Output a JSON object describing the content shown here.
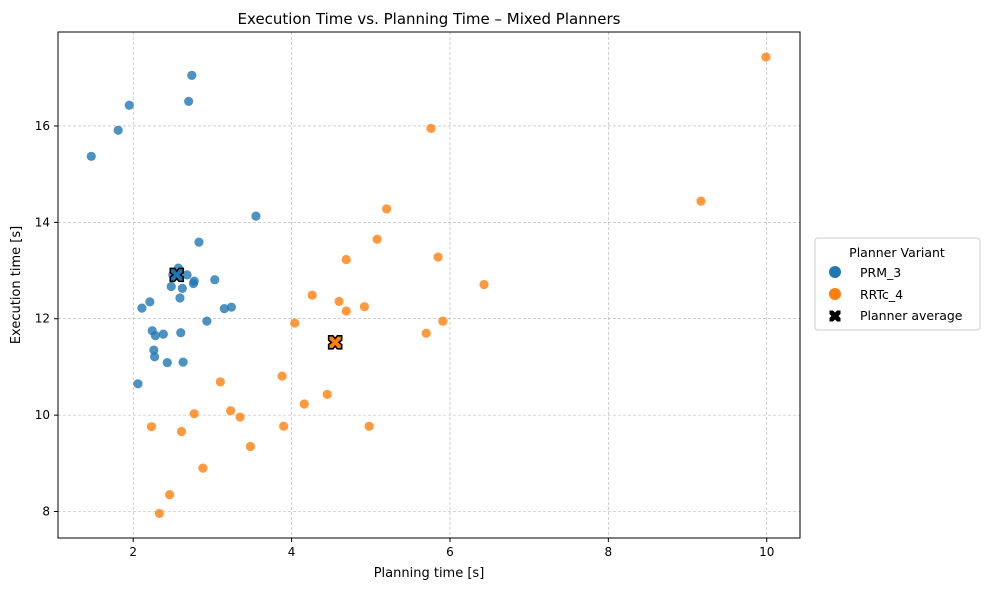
{
  "chart_data": {
    "type": "scatter",
    "title": "Execution Time vs. Planning Time – Mixed Planners",
    "xlabel": "Planning time [s]",
    "ylabel": "Execution time [s]",
    "xlim": [
      1.05,
      10.42
    ],
    "ylim": [
      7.45,
      17.95
    ],
    "xticks": [
      2,
      4,
      6,
      8,
      10
    ],
    "yticks": [
      8,
      10,
      12,
      14,
      16
    ],
    "grid": true,
    "legend": {
      "title": "Planner Variant",
      "placement": "center-right outside",
      "entries": [
        "PRM_3",
        "RRTc_4",
        "Planner average"
      ]
    },
    "series": [
      {
        "name": "PRM_3",
        "color": "#1f77b4",
        "points": [
          [
            1.47,
            15.37
          ],
          [
            1.81,
            15.91
          ],
          [
            1.95,
            16.43
          ],
          [
            2.7,
            16.51
          ],
          [
            2.74,
            17.05
          ],
          [
            3.55,
            14.13
          ],
          [
            2.83,
            13.59
          ],
          [
            2.57,
            13.05
          ],
          [
            2.5,
            12.91
          ],
          [
            2.68,
            12.91
          ],
          [
            2.77,
            12.78
          ],
          [
            2.76,
            12.73
          ],
          [
            3.03,
            12.81
          ],
          [
            2.48,
            12.67
          ],
          [
            2.62,
            12.63
          ],
          [
            2.59,
            12.43
          ],
          [
            2.21,
            12.35
          ],
          [
            2.11,
            12.22
          ],
          [
            3.15,
            12.21
          ],
          [
            3.24,
            12.24
          ],
          [
            2.93,
            11.95
          ],
          [
            2.24,
            11.75
          ],
          [
            2.6,
            11.71
          ],
          [
            2.28,
            11.65
          ],
          [
            2.38,
            11.68
          ],
          [
            2.26,
            11.35
          ],
          [
            2.27,
            11.21
          ],
          [
            2.43,
            11.09
          ],
          [
            2.63,
            11.1
          ],
          [
            2.06,
            10.65
          ]
        ],
        "average": [
          2.55,
          12.91
        ]
      },
      {
        "name": "RRTc_4",
        "color": "#ff7f0e",
        "points": [
          [
            9.99,
            17.43
          ],
          [
            5.76,
            15.95
          ],
          [
            9.17,
            14.44
          ],
          [
            5.2,
            14.28
          ],
          [
            5.08,
            13.65
          ],
          [
            5.85,
            13.28
          ],
          [
            4.69,
            13.23
          ],
          [
            6.43,
            12.71
          ],
          [
            4.26,
            12.49
          ],
          [
            4.6,
            12.36
          ],
          [
            4.92,
            12.25
          ],
          [
            4.69,
            12.16
          ],
          [
            5.91,
            11.95
          ],
          [
            4.04,
            11.91
          ],
          [
            5.7,
            11.7
          ],
          [
            3.1,
            10.69
          ],
          [
            3.88,
            10.81
          ],
          [
            4.45,
            10.43
          ],
          [
            4.16,
            10.23
          ],
          [
            3.23,
            10.09
          ],
          [
            2.77,
            10.03
          ],
          [
            3.35,
            9.96
          ],
          [
            2.23,
            9.76
          ],
          [
            3.9,
            9.77
          ],
          [
            4.98,
            9.77
          ],
          [
            2.61,
            9.66
          ],
          [
            3.48,
            9.35
          ],
          [
            2.88,
            8.9
          ],
          [
            2.46,
            8.35
          ],
          [
            2.33,
            7.96
          ]
        ],
        "average": [
          4.55,
          11.51
        ]
      }
    ]
  }
}
